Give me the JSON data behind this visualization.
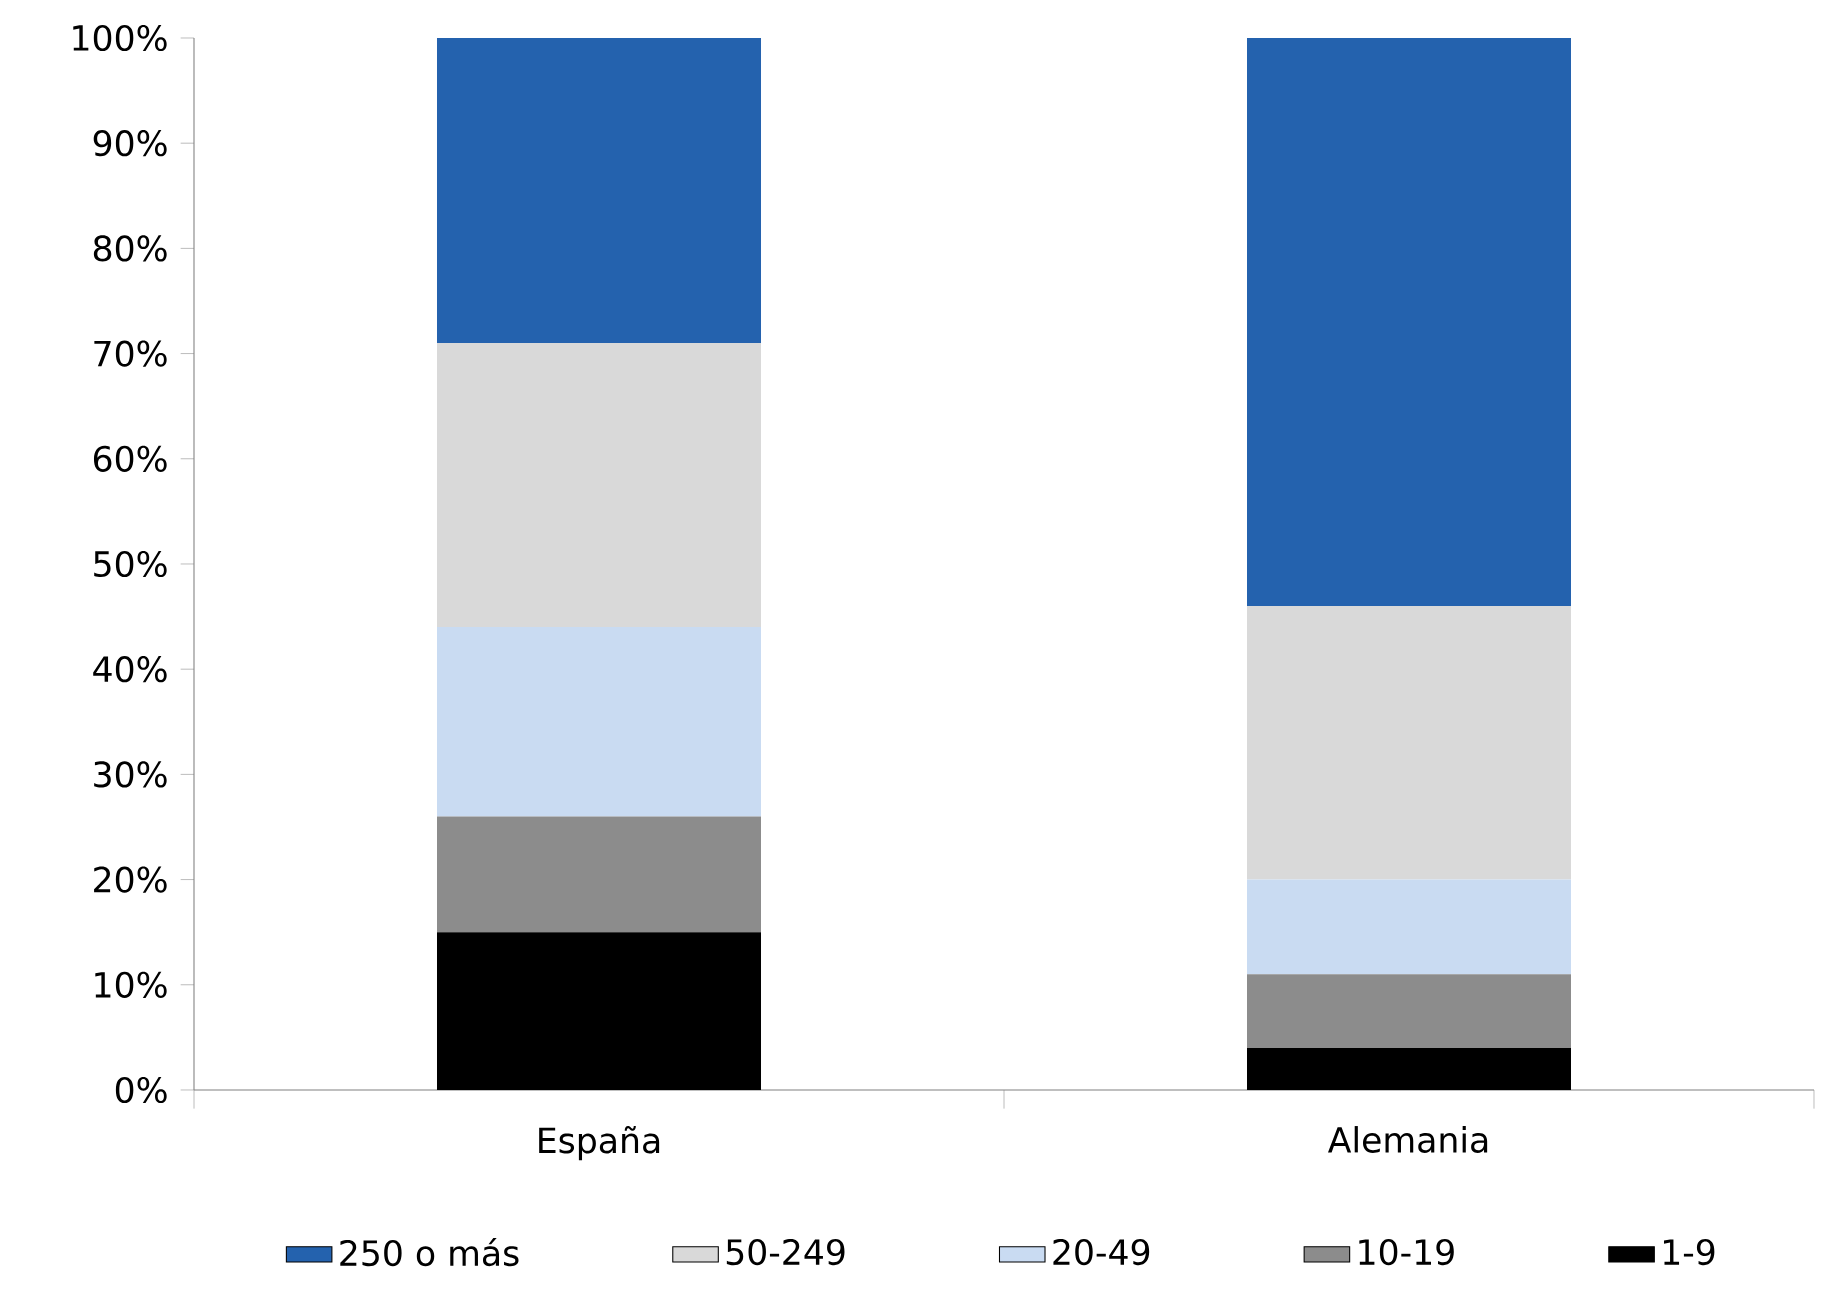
{
  "chart_data": {
    "type": "bar",
    "stacked": true,
    "categories": [
      "España",
      "Alemania"
    ],
    "series": [
      {
        "name": "1-9",
        "color": "#000000",
        "values": [
          15,
          4
        ]
      },
      {
        "name": "10-19",
        "color": "#8c8c8c",
        "values": [
          11,
          7
        ]
      },
      {
        "name": "20-49",
        "color": "#c9dbf2",
        "values": [
          18,
          9
        ]
      },
      {
        "name": "50-249",
        "color": "#d9d9d9",
        "values": [
          27,
          26
        ]
      },
      {
        "name": "250 o más",
        "color": "#2462ae",
        "values": [
          29,
          54
        ]
      }
    ],
    "ylim": [
      0,
      100
    ],
    "yticks": [
      {
        "value": 0,
        "label": "0%"
      },
      {
        "value": 10,
        "label": "10%"
      },
      {
        "value": 20,
        "label": "20%"
      },
      {
        "value": 30,
        "label": "30%"
      },
      {
        "value": 40,
        "label": "40%"
      },
      {
        "value": 50,
        "label": "50%"
      },
      {
        "value": 60,
        "label": "60%"
      },
      {
        "value": 70,
        "label": "70%"
      },
      {
        "value": 80,
        "label": "80%"
      },
      {
        "value": 90,
        "label": "90%"
      },
      {
        "value": 100,
        "label": "100%"
      }
    ],
    "grid": false,
    "legend": "bottom"
  }
}
